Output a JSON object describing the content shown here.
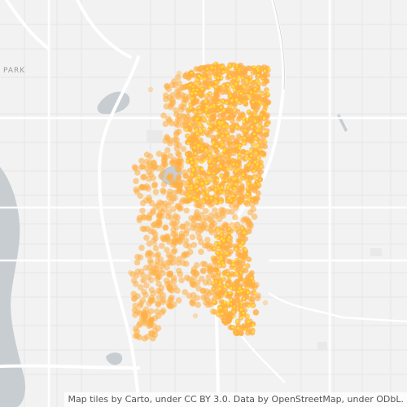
{
  "map": {
    "place_labels": [
      "PARK"
    ],
    "attribution": "Map tiles by Carto, under CC BY 3.0. Data by OpenStreetMap, under ODbL.",
    "colors": {
      "background": "#f2f2f2",
      "water": "#c8cdd1",
      "roads": "#ffffff",
      "minor_roads": "#e4e4e4",
      "point_outer": "#ffae42",
      "point_inner": "#ffe22e"
    }
  }
}
